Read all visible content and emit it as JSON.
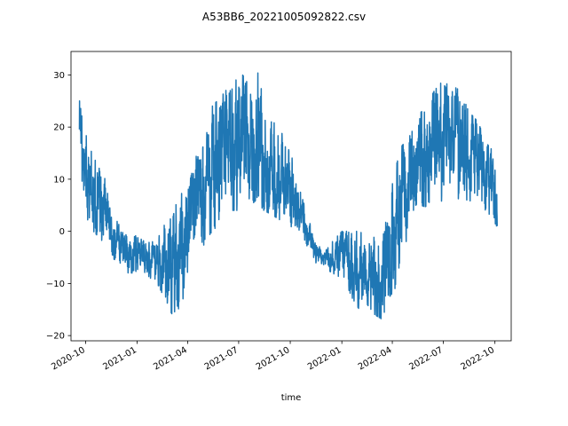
{
  "chart_data": {
    "type": "line",
    "title": "A53BB6_20221005092822.csv",
    "xlabel": "time",
    "ylabel": "",
    "xlim": [
      "2020-09-05",
      "2022-10-30"
    ],
    "ylim": [
      -21,
      34.5
    ],
    "x_ticks": [
      "2020-10",
      "2021-01",
      "2021-04",
      "2021-07",
      "2021-10",
      "2022-01",
      "2022-04",
      "2022-07",
      "2022-10"
    ],
    "y_ticks": [
      -20,
      -10,
      0,
      10,
      20,
      30
    ],
    "grid": false,
    "legend": "none",
    "series": [
      {
        "color": "#1f77b4",
        "envelope": {
          "x": [
            "2020-09-20",
            "2020-10-01",
            "2020-10-15",
            "2020-11-01",
            "2020-11-15",
            "2020-12-01",
            "2020-12-15",
            "2021-01-01",
            "2021-01-15",
            "2021-02-01",
            "2021-02-15",
            "2021-03-01",
            "2021-03-15",
            "2021-04-01",
            "2021-04-15",
            "2021-05-01",
            "2021-05-15",
            "2021-06-01",
            "2021-06-15",
            "2021-07-01",
            "2021-07-15",
            "2021-08-01",
            "2021-08-15",
            "2021-09-01",
            "2021-09-15",
            "2021-10-01",
            "2021-10-15",
            "2021-11-01",
            "2021-11-15",
            "2021-12-01",
            "2021-12-15",
            "2022-01-01",
            "2022-01-15",
            "2022-02-01",
            "2022-02-15",
            "2022-03-01",
            "2022-03-15",
            "2022-04-01",
            "2022-04-15",
            "2022-05-01",
            "2022-05-15",
            "2022-06-01",
            "2022-06-15",
            "2022-07-01",
            "2022-07-15",
            "2022-08-01",
            "2022-08-15",
            "2022-09-01",
            "2022-09-15",
            "2022-10-01",
            "2022-10-05"
          ],
          "min": [
            12,
            3,
            0,
            -2,
            -5,
            -6,
            -8,
            -8,
            -9,
            -9,
            -12,
            -16,
            -15,
            -12,
            -10,
            -2,
            0,
            2,
            4,
            4,
            4,
            6,
            4,
            3,
            2,
            1,
            0,
            -3,
            -6,
            -7,
            -8,
            -9,
            -12,
            -15,
            -14,
            -16,
            -17,
            -14,
            -6,
            -2,
            2,
            5,
            5,
            6,
            7,
            6,
            6,
            5,
            4,
            2,
            -1
          ],
          "max": [
            26,
            19,
            14,
            12,
            4,
            1,
            0,
            -1,
            -2,
            -2,
            0,
            5,
            10,
            8,
            14,
            19,
            24,
            26,
            28,
            31,
            29,
            32,
            25,
            21,
            19,
            16,
            9,
            3,
            -2,
            -4,
            -2,
            0,
            0,
            0,
            -1,
            0,
            3,
            9,
            16,
            18,
            22,
            24,
            27,
            29,
            28,
            27,
            23,
            21,
            17,
            15,
            12
          ]
        }
      }
    ]
  }
}
